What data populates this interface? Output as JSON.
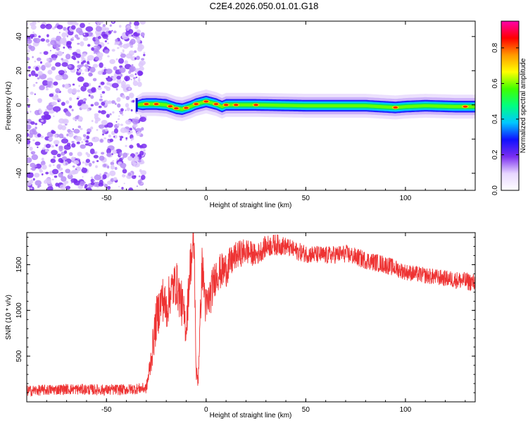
{
  "title": "C2E4.2026.050.01.01.G18",
  "colors": {
    "snr_line": "#ee3333",
    "speckle": "#9b59f5",
    "colorbar_stops": [
      "#ffffff",
      "#e7d6ff",
      "#7a2ef0",
      "#1010ff",
      "#00c8ff",
      "#00ff80",
      "#40ff00",
      "#ffff00",
      "#ff9900",
      "#ff0000",
      "#ff00aa"
    ]
  },
  "chart_data": [
    {
      "type": "heatmap",
      "title": "C2E4.2026.050.01.01.G18",
      "xlabel": "Height of straight line (km)",
      "ylabel": "Frequency (Hz)",
      "xlim": [
        -90,
        135
      ],
      "ylim": [
        -50,
        49
      ],
      "x_ticks": [
        -50,
        0,
        50,
        100
      ],
      "y_ticks": [
        -40,
        -20,
        0,
        20,
        40
      ],
      "grid": false,
      "noise_region_x": [
        -90,
        -33
      ],
      "signal_onset_x": -35,
      "ridge": {
        "x": [
          -35,
          -30,
          -25,
          -20,
          -15,
          -12,
          -8,
          -5,
          0,
          5,
          8,
          10,
          15,
          25,
          50,
          80,
          95,
          100,
          110,
          125,
          135
        ],
        "freq": [
          0,
          0.5,
          0.5,
          0,
          -2,
          -2.5,
          -1,
          0.5,
          2,
          0.5,
          -1,
          0,
          0,
          0,
          -0.5,
          -0.5,
          -1.5,
          -1,
          -0.5,
          -1,
          -1
        ]
      },
      "peak_amplitude_x": [
        -30,
        -25,
        -18,
        -15,
        -10,
        -5,
        0,
        5,
        10,
        15,
        25,
        95,
        130
      ],
      "colorbar": {
        "label": "Normalized spectral amplitude",
        "range": [
          0.0,
          0.95
        ],
        "ticks": [
          0.0,
          0.2,
          0.4,
          0.6,
          0.8
        ]
      }
    },
    {
      "type": "line",
      "xlabel": "Height of straight line (km)",
      "ylabel": "SNR (10 * v/v)",
      "xlim": [
        -90,
        135
      ],
      "ylim": [
        0,
        1850
      ],
      "x_ticks": [
        -50,
        0,
        50,
        100
      ],
      "y_ticks": [
        500,
        1000,
        1500
      ],
      "grid": false,
      "series": [
        {
          "x": [
            -90,
            -80,
            -70,
            -60,
            -50,
            -40,
            -30,
            -28,
            -25,
            -22,
            -20,
            -18,
            -15,
            -12,
            -10,
            -8,
            -6,
            -5,
            -4,
            -2,
            0,
            5,
            10,
            15,
            20,
            25,
            30,
            35,
            40,
            45,
            50,
            60,
            70,
            80,
            90,
            100,
            110,
            120,
            130,
            135
          ],
          "y": [
            120,
            130,
            140,
            135,
            130,
            135,
            150,
            400,
            900,
            1150,
            1000,
            1200,
            1300,
            1050,
            800,
            1500,
            1700,
            300,
            250,
            1500,
            1000,
            1400,
            1450,
            1600,
            1650,
            1600,
            1700,
            1720,
            1700,
            1650,
            1620,
            1600,
            1620,
            1550,
            1500,
            1420,
            1380,
            1350,
            1320,
            1300
          ],
          "noise_amplitude": [
            60,
            60,
            60,
            60,
            60,
            60,
            60,
            150,
            250,
            250,
            250,
            250,
            250,
            250,
            200,
            250,
            250,
            100,
            100,
            250,
            250,
            200,
            200,
            150,
            150,
            120,
            120,
            120,
            100,
            100,
            100,
            100,
            100,
            100,
            100,
            90,
            90,
            90,
            100,
            100
          ]
        }
      ]
    }
  ]
}
